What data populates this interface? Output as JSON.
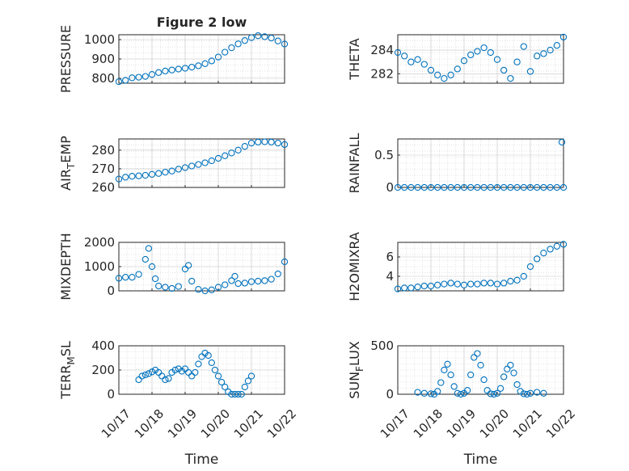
{
  "chart_data": [
    {
      "type": "scatter",
      "title": "Figure 2 low",
      "ylabel": "PRESSURE",
      "ylim": [
        775,
        1025
      ],
      "yticks": [
        {
          "v": 800,
          "label": "800"
        },
        {
          "v": 900,
          "label": "900"
        },
        {
          "v": 1000,
          "label": "1000"
        }
      ],
      "xlim": [
        0,
        5
      ],
      "xticks": [],
      "xlabel": "",
      "points": [
        [
          0,
          783
        ],
        [
          0.2,
          790
        ],
        [
          0.4,
          803
        ],
        [
          0.6,
          806
        ],
        [
          0.8,
          810
        ],
        [
          1.0,
          820
        ],
        [
          1.2,
          830
        ],
        [
          1.4,
          838
        ],
        [
          1.6,
          843
        ],
        [
          1.8,
          848
        ],
        [
          2.0,
          852
        ],
        [
          2.2,
          858
        ],
        [
          2.4,
          865
        ],
        [
          2.6,
          876
        ],
        [
          2.8,
          890
        ],
        [
          3.0,
          910
        ],
        [
          3.2,
          935
        ],
        [
          3.4,
          958
        ],
        [
          3.6,
          978
        ],
        [
          3.8,
          995
        ],
        [
          4.0,
          1010
        ],
        [
          4.2,
          1020
        ],
        [
          4.4,
          1015
        ],
        [
          4.6,
          1008
        ],
        [
          4.8,
          993
        ],
        [
          5.0,
          977
        ]
      ]
    },
    {
      "type": "scatter",
      "title": "",
      "ylabel": "THETA",
      "ylim": [
        281.2,
        285.3
      ],
      "yticks": [
        {
          "v": 282,
          "label": "282"
        },
        {
          "v": 284,
          "label": "284"
        }
      ],
      "xlim": [
        0,
        5
      ],
      "xticks": [],
      "xlabel": "",
      "points": [
        [
          0,
          283.8
        ],
        [
          0.2,
          283.5
        ],
        [
          0.4,
          283.0
        ],
        [
          0.6,
          283.2
        ],
        [
          0.8,
          282.8
        ],
        [
          1.0,
          282.3
        ],
        [
          1.2,
          281.9
        ],
        [
          1.4,
          281.6
        ],
        [
          1.6,
          281.9
        ],
        [
          1.8,
          282.4
        ],
        [
          2.0,
          283.1
        ],
        [
          2.2,
          283.6
        ],
        [
          2.4,
          283.9
        ],
        [
          2.6,
          284.2
        ],
        [
          2.8,
          283.8
        ],
        [
          3.0,
          283.2
        ],
        [
          3.2,
          282.3
        ],
        [
          3.4,
          281.6
        ],
        [
          3.6,
          283.0
        ],
        [
          3.8,
          284.3
        ],
        [
          4.0,
          282.2
        ],
        [
          4.2,
          283.5
        ],
        [
          4.4,
          283.7
        ],
        [
          4.6,
          284.0
        ],
        [
          4.8,
          284.4
        ],
        [
          5.0,
          285.1
        ]
      ]
    },
    {
      "type": "scatter",
      "title": "",
      "ylabel": "AIR_TEMP",
      "ylabel_main": "AIR",
      "ylabel_sub": "T",
      "ylabel_rest": "EMP",
      "ylim": [
        260,
        286
      ],
      "yticks": [
        {
          "v": 260,
          "label": "260"
        },
        {
          "v": 270,
          "label": "270"
        },
        {
          "v": 280,
          "label": "280"
        }
      ],
      "xlim": [
        0,
        5
      ],
      "xticks": [],
      "xlabel": "",
      "points": [
        [
          0,
          264.5
        ],
        [
          0.2,
          265.5
        ],
        [
          0.4,
          266.0
        ],
        [
          0.6,
          266.2
        ],
        [
          0.8,
          266.5
        ],
        [
          1.0,
          267.0
        ],
        [
          1.2,
          267.5
        ],
        [
          1.4,
          268.2
        ],
        [
          1.6,
          268.8
        ],
        [
          1.8,
          269.8
        ],
        [
          2.0,
          270.6
        ],
        [
          2.2,
          271.5
        ],
        [
          2.4,
          272.3
        ],
        [
          2.6,
          273.2
        ],
        [
          2.8,
          274.3
        ],
        [
          3.0,
          275.6
        ],
        [
          3.2,
          277.0
        ],
        [
          3.4,
          278.5
        ],
        [
          3.6,
          280.0
        ],
        [
          3.8,
          282.0
        ],
        [
          4.0,
          283.8
        ],
        [
          4.2,
          284.3
        ],
        [
          4.4,
          284.5
        ],
        [
          4.6,
          284.3
        ],
        [
          4.8,
          283.8
        ],
        [
          5.0,
          283.0
        ]
      ]
    },
    {
      "type": "scatter",
      "title": "",
      "ylabel": "RAINFALL",
      "ylim": [
        0,
        0.75
      ],
      "yticks": [
        {
          "v": 0,
          "label": "0"
        },
        {
          "v": 0.5,
          "label": "0.5"
        }
      ],
      "xlim": [
        0,
        5
      ],
      "xticks": [],
      "xlabel": "",
      "points": [
        [
          0,
          0
        ],
        [
          0.2,
          0
        ],
        [
          0.4,
          0
        ],
        [
          0.6,
          0
        ],
        [
          0.8,
          0
        ],
        [
          1.0,
          0
        ],
        [
          1.2,
          0
        ],
        [
          1.4,
          0
        ],
        [
          1.6,
          0
        ],
        [
          1.8,
          0
        ],
        [
          2.0,
          0
        ],
        [
          2.2,
          0
        ],
        [
          2.4,
          0
        ],
        [
          2.6,
          0
        ],
        [
          2.8,
          0
        ],
        [
          3.0,
          0
        ],
        [
          3.2,
          0
        ],
        [
          3.4,
          0
        ],
        [
          3.6,
          0
        ],
        [
          3.8,
          0
        ],
        [
          4.0,
          0
        ],
        [
          4.2,
          0
        ],
        [
          4.4,
          0
        ],
        [
          4.6,
          0
        ],
        [
          4.8,
          0
        ],
        [
          5.0,
          0
        ],
        [
          4.95,
          0.7
        ]
      ]
    },
    {
      "type": "scatter",
      "title": "",
      "ylabel": "MIXDEPTH",
      "ylim": [
        0,
        2000
      ],
      "yticks": [
        {
          "v": 0,
          "label": "0"
        },
        {
          "v": 1000,
          "label": "1000"
        },
        {
          "v": 2000,
          "label": "2000"
        }
      ],
      "xlim": [
        0,
        5
      ],
      "xticks": [],
      "xlabel": "",
      "points": [
        [
          0,
          520
        ],
        [
          0.2,
          560
        ],
        [
          0.4,
          560
        ],
        [
          0.6,
          680
        ],
        [
          0.8,
          1300
        ],
        [
          0.9,
          1750
        ],
        [
          1.0,
          1000
        ],
        [
          1.1,
          500
        ],
        [
          1.2,
          200
        ],
        [
          1.4,
          150
        ],
        [
          1.6,
          100
        ],
        [
          1.8,
          180
        ],
        [
          2.0,
          900
        ],
        [
          2.1,
          1050
        ],
        [
          2.2,
          400
        ],
        [
          2.4,
          60
        ],
        [
          2.6,
          0
        ],
        [
          2.8,
          40
        ],
        [
          3.0,
          150
        ],
        [
          3.2,
          250
        ],
        [
          3.4,
          420
        ],
        [
          3.5,
          600
        ],
        [
          3.6,
          300
        ],
        [
          3.8,
          320
        ],
        [
          4.0,
          380
        ],
        [
          4.2,
          400
        ],
        [
          4.4,
          420
        ],
        [
          4.6,
          480
        ],
        [
          4.8,
          700
        ],
        [
          5.0,
          1200
        ]
      ]
    },
    {
      "type": "scatter",
      "title": "",
      "ylabel": "H2OMIXRA",
      "ylim": [
        2.5,
        7.5
      ],
      "yticks": [
        {
          "v": 4,
          "label": "4"
        },
        {
          "v": 6,
          "label": "6"
        }
      ],
      "xlim": [
        0,
        5
      ],
      "xticks": [],
      "xlabel": "",
      "points": [
        [
          0,
          2.7
        ],
        [
          0.2,
          2.8
        ],
        [
          0.4,
          2.8
        ],
        [
          0.6,
          2.9
        ],
        [
          0.8,
          3.0
        ],
        [
          1.0,
          3.0
        ],
        [
          1.2,
          3.1
        ],
        [
          1.4,
          3.2
        ],
        [
          1.6,
          3.3
        ],
        [
          1.8,
          3.2
        ],
        [
          2.0,
          3.1
        ],
        [
          2.2,
          3.2
        ],
        [
          2.4,
          3.2
        ],
        [
          2.6,
          3.3
        ],
        [
          2.8,
          3.3
        ],
        [
          3.0,
          3.2
        ],
        [
          3.2,
          3.3
        ],
        [
          3.4,
          3.5
        ],
        [
          3.6,
          3.6
        ],
        [
          3.8,
          4.0
        ],
        [
          4.0,
          5.0
        ],
        [
          4.2,
          5.8
        ],
        [
          4.4,
          6.4
        ],
        [
          4.6,
          6.8
        ],
        [
          4.8,
          7.1
        ],
        [
          5.0,
          7.3
        ]
      ]
    },
    {
      "type": "scatter",
      "title": "",
      "ylabel": "TERR_MSL",
      "ylabel_main": "TERR",
      "ylabel_sub": "M",
      "ylabel_rest": "SL",
      "ylim": [
        0,
        400
      ],
      "yticks": [
        {
          "v": 0,
          "label": "0"
        },
        {
          "v": 200,
          "label": "200"
        },
        {
          "v": 400,
          "label": "400"
        }
      ],
      "xlim": [
        0,
        5
      ],
      "xticks": [
        {
          "v": 0,
          "label": "10/17"
        },
        {
          "v": 1,
          "label": "10/18"
        },
        {
          "v": 2,
          "label": "10/19"
        },
        {
          "v": 3,
          "label": "10/20"
        },
        {
          "v": 4,
          "label": "10/21"
        },
        {
          "v": 5,
          "label": "10/22"
        }
      ],
      "xlabel": "Time",
      "points": [
        [
          0.6,
          120
        ],
        [
          0.7,
          150
        ],
        [
          0.8,
          160
        ],
        [
          0.9,
          170
        ],
        [
          1.0,
          185
        ],
        [
          1.1,
          200
        ],
        [
          1.2,
          180
        ],
        [
          1.3,
          150
        ],
        [
          1.4,
          120
        ],
        [
          1.5,
          130
        ],
        [
          1.6,
          180
        ],
        [
          1.7,
          200
        ],
        [
          1.8,
          210
        ],
        [
          1.9,
          190
        ],
        [
          2.0,
          210
        ],
        [
          2.1,
          180
        ],
        [
          2.2,
          150
        ],
        [
          2.3,
          180
        ],
        [
          2.4,
          250
        ],
        [
          2.5,
          310
        ],
        [
          2.6,
          340
        ],
        [
          2.7,
          320
        ],
        [
          2.8,
          260
        ],
        [
          2.9,
          200
        ],
        [
          3.0,
          150
        ],
        [
          3.1,
          100
        ],
        [
          3.2,
          60
        ],
        [
          3.3,
          20
        ],
        [
          3.4,
          0
        ],
        [
          3.5,
          0
        ],
        [
          3.6,
          0
        ],
        [
          3.7,
          0
        ],
        [
          3.8,
          60
        ],
        [
          3.9,
          110
        ],
        [
          4.0,
          150
        ]
      ]
    },
    {
      "type": "scatter",
      "title": "",
      "ylabel": "SUN_FLUX",
      "ylabel_main": "SUN",
      "ylabel_sub": "F",
      "ylabel_rest": "LUX",
      "ylim": [
        0,
        500
      ],
      "yticks": [
        {
          "v": 0,
          "label": "0"
        },
        {
          "v": 500,
          "label": "500"
        }
      ],
      "xlim": [
        0,
        5
      ],
      "xticks": [
        {
          "v": 0,
          "label": "10/17"
        },
        {
          "v": 1,
          "label": "10/18"
        },
        {
          "v": 2,
          "label": "10/19"
        },
        {
          "v": 3,
          "label": "10/20"
        },
        {
          "v": 4,
          "label": "10/21"
        },
        {
          "v": 5,
          "label": "10/22"
        }
      ],
      "xlabel": "Time",
      "points": [
        [
          0.6,
          20
        ],
        [
          0.8,
          10
        ],
        [
          1.0,
          5
        ],
        [
          1.1,
          0
        ],
        [
          1.2,
          30
        ],
        [
          1.3,
          120
        ],
        [
          1.4,
          250
        ],
        [
          1.5,
          310
        ],
        [
          1.6,
          200
        ],
        [
          1.7,
          80
        ],
        [
          1.8,
          10
        ],
        [
          1.9,
          0
        ],
        [
          2.0,
          10
        ],
        [
          2.1,
          40
        ],
        [
          2.2,
          200
        ],
        [
          2.3,
          380
        ],
        [
          2.4,
          420
        ],
        [
          2.5,
          300
        ],
        [
          2.6,
          150
        ],
        [
          2.7,
          40
        ],
        [
          2.8,
          5
        ],
        [
          2.9,
          0
        ],
        [
          3.0,
          10
        ],
        [
          3.1,
          60
        ],
        [
          3.2,
          180
        ],
        [
          3.3,
          260
        ],
        [
          3.4,
          300
        ],
        [
          3.5,
          220
        ],
        [
          3.6,
          100
        ],
        [
          3.7,
          30
        ],
        [
          3.8,
          5
        ],
        [
          3.9,
          0
        ],
        [
          4.0,
          10
        ],
        [
          4.2,
          20
        ],
        [
          4.4,
          10
        ]
      ]
    }
  ]
}
